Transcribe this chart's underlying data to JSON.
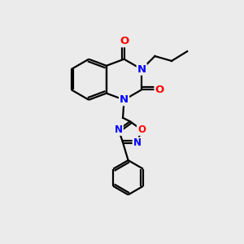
{
  "bg_color": "#ebebeb",
  "bond_color": "#000000",
  "N_color": "#0000ff",
  "O_color": "#ff0000",
  "line_width": 1.6,
  "figsize": [
    3.0,
    3.0
  ],
  "dpi": 100,
  "xlim": [
    0,
    10
  ],
  "ylim": [
    0,
    10
  ]
}
